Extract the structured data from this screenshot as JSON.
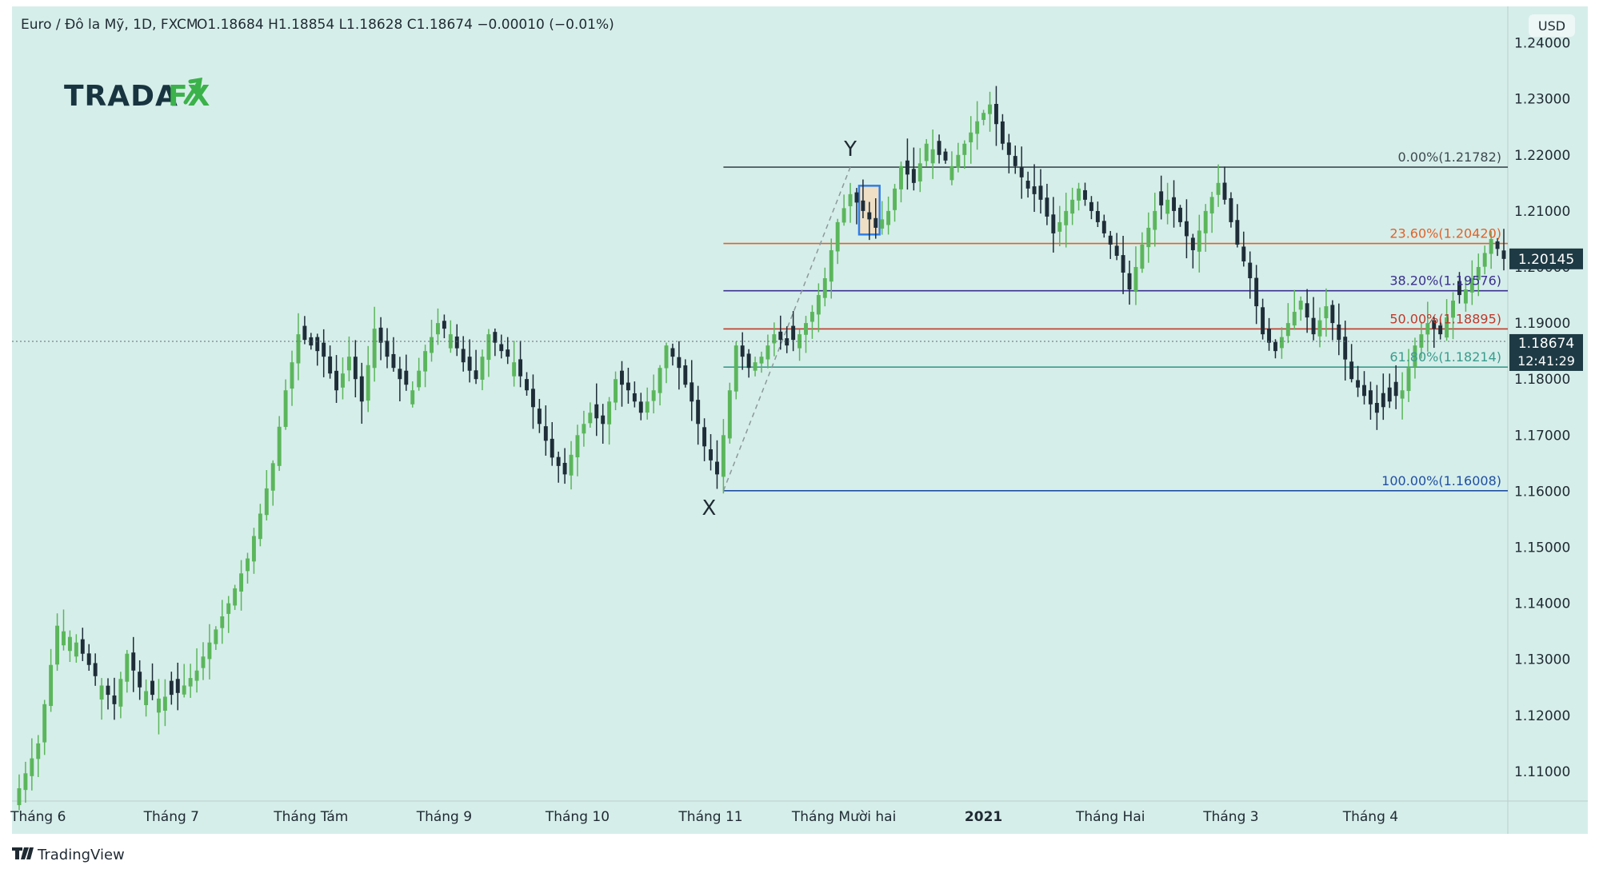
{
  "header": {
    "symbol": "Euro / Đô la Mỹ, 1D, FXCM",
    "ohlc": "O1.18684  H1.18854  L1.18628  C1.18674  −0.00010 (−0.01%)"
  },
  "currency_label": "USD",
  "logo": {
    "text": "TRADA",
    "accent": "FX"
  },
  "footer": {
    "brand": "TradingView"
  },
  "price_tags": {
    "fib_price": "1.20145",
    "last_price": "1.18674",
    "countdown": "12:41:29"
  },
  "annotations": {
    "x_label": "X",
    "y_label": "Y"
  },
  "colors": {
    "background": "#d6eeea",
    "up_candle": "#5bb65b",
    "down_candle": "#1e2d38",
    "fib_0": "#3d4a4f",
    "fib_23_6": "#e0622a",
    "fib_38_2": "#3a2f8f",
    "fib_50": "#c0392b",
    "fib_61_8": "#3a9c8c",
    "fib_100": "#1f4fa3",
    "tag_bg": "#1e3a44"
  },
  "chart_data": {
    "type": "candlestick",
    "symbol": "EUR/USD",
    "ylim": [
      1.105,
      1.2465
    ],
    "y_ticks": [
      "1.24000",
      "1.23000",
      "1.22000",
      "1.21000",
      "1.20000",
      "1.19000",
      "1.18000",
      "1.17000",
      "1.16000",
      "1.15000",
      "1.14000",
      "1.13000",
      "1.12000",
      "1.11000"
    ],
    "x_ticks": [
      {
        "label": "Tháng 6",
        "index": 3
      },
      {
        "label": "Tháng 7",
        "index": 24
      },
      {
        "label": "Tháng Tám",
        "index": 46
      },
      {
        "label": "Tháng 9",
        "index": 67
      },
      {
        "label": "Tháng 10",
        "index": 88
      },
      {
        "label": "Tháng 11",
        "index": 109
      },
      {
        "label": "Tháng Mười hai",
        "index": 130
      },
      {
        "label": "2021",
        "index": 152
      },
      {
        "label": "Tháng Hai",
        "index": 172
      },
      {
        "label": "Tháng 3",
        "index": 191
      },
      {
        "label": "Tháng 4",
        "index": 213
      }
    ],
    "fibonacci": {
      "x_index": 111,
      "y_index": 131,
      "levels": [
        {
          "label": "0.00%(1.21782)",
          "value": 1.21782,
          "color": "#3d4a4f"
        },
        {
          "label": "23.60%(1.20420)",
          "value": 1.2042,
          "color": "#e0622a"
        },
        {
          "label": "38.20%(1.19576)",
          "value": 1.19576,
          "color": "#3a2f8f"
        },
        {
          "label": "50.00%(1.18895)",
          "value": 1.18895,
          "color": "#c0392b"
        },
        {
          "label": "61.80%(1.18214)",
          "value": 1.18214,
          "color": "#3a9c8c"
        },
        {
          "label": "100.00%(1.16008)",
          "value": 1.16008,
          "color": "#1f4fa3"
        }
      ]
    },
    "highlight_box": {
      "start_index": 133,
      "end_index": 135,
      "top": 1.2145,
      "bottom": 1.2058
    },
    "close_anchors": [
      [
        0,
        1.107
      ],
      [
        3,
        1.115
      ],
      [
        6,
        1.136
      ],
      [
        9,
        1.133
      ],
      [
        12,
        1.127
      ],
      [
        15,
        1.122
      ],
      [
        17,
        1.131
      ],
      [
        19,
        1.125
      ],
      [
        22,
        1.123
      ],
      [
        25,
        1.124
      ],
      [
        28,
        1.128
      ],
      [
        30,
        1.133
      ],
      [
        33,
        1.14
      ],
      [
        36,
        1.148
      ],
      [
        38,
        1.156
      ],
      [
        40,
        1.165
      ],
      [
        42,
        1.178
      ],
      [
        44,
        1.188
      ],
      [
        46,
        1.186
      ],
      [
        48,
        1.184
      ],
      [
        50,
        1.178
      ],
      [
        52,
        1.184
      ],
      [
        54,
        1.176
      ],
      [
        56,
        1.189
      ],
      [
        58,
        1.184
      ],
      [
        60,
        1.18
      ],
      [
        62,
        1.178
      ],
      [
        64,
        1.185
      ],
      [
        66,
        1.19
      ],
      [
        68,
        1.188
      ],
      [
        70,
        1.183
      ],
      [
        72,
        1.18
      ],
      [
        74,
        1.188
      ],
      [
        76,
        1.185
      ],
      [
        78,
        1.183
      ],
      [
        80,
        1.178
      ],
      [
        82,
        1.172
      ],
      [
        84,
        1.166
      ],
      [
        86,
        1.163
      ],
      [
        88,
        1.17
      ],
      [
        90,
        1.174
      ],
      [
        92,
        1.172
      ],
      [
        94,
        1.18
      ],
      [
        96,
        1.178
      ],
      [
        98,
        1.174
      ],
      [
        100,
        1.178
      ],
      [
        102,
        1.186
      ],
      [
        104,
        1.182
      ],
      [
        106,
        1.176
      ],
      [
        108,
        1.168
      ],
      [
        110,
        1.163
      ],
      [
        111,
        1.17
      ],
      [
        113,
        1.186
      ],
      [
        115,
        1.182
      ],
      [
        117,
        1.184
      ],
      [
        119,
        1.188
      ],
      [
        121,
        1.186
      ],
      [
        123,
        1.188
      ],
      [
        125,
        1.192
      ],
      [
        127,
        1.198
      ],
      [
        129,
        1.208
      ],
      [
        131,
        1.213
      ],
      [
        133,
        1.21
      ],
      [
        135,
        1.207
      ],
      [
        137,
        1.21
      ],
      [
        139,
        1.218
      ],
      [
        141,
        1.215
      ],
      [
        143,
        1.222
      ],
      [
        145,
        1.22
      ],
      [
        147,
        1.218
      ],
      [
        149,
        1.222
      ],
      [
        151,
        1.226
      ],
      [
        153,
        1.229
      ],
      [
        155,
        1.222
      ],
      [
        157,
        1.218
      ],
      [
        159,
        1.214
      ],
      [
        161,
        1.212
      ],
      [
        163,
        1.206
      ],
      [
        165,
        1.21
      ],
      [
        167,
        1.214
      ],
      [
        169,
        1.21
      ],
      [
        171,
        1.206
      ],
      [
        173,
        1.202
      ],
      [
        175,
        1.196
      ],
      [
        177,
        1.204
      ],
      [
        179,
        1.21
      ],
      [
        181,
        1.212
      ],
      [
        183,
        1.208
      ],
      [
        185,
        1.203
      ],
      [
        187,
        1.21
      ],
      [
        189,
        1.215
      ],
      [
        190,
        1.212
      ],
      [
        192,
        1.204
      ],
      [
        194,
        1.198
      ],
      [
        196,
        1.188
      ],
      [
        198,
        1.185
      ],
      [
        200,
        1.19
      ],
      [
        202,
        1.194
      ],
      [
        204,
        1.188
      ],
      [
        206,
        1.193
      ],
      [
        208,
        1.187
      ],
      [
        210,
        1.18
      ],
      [
        212,
        1.177
      ],
      [
        214,
        1.174
      ],
      [
        216,
        1.176
      ],
      [
        218,
        1.178
      ],
      [
        220,
        1.186
      ],
      [
        222,
        1.19
      ],
      [
        224,
        1.188
      ],
      [
        226,
        1.194
      ],
      [
        228,
        1.196
      ],
      [
        230,
        1.2
      ],
      [
        232,
        1.205
      ],
      [
        234,
        1.20145
      ]
    ],
    "last_close": 1.18674
  }
}
